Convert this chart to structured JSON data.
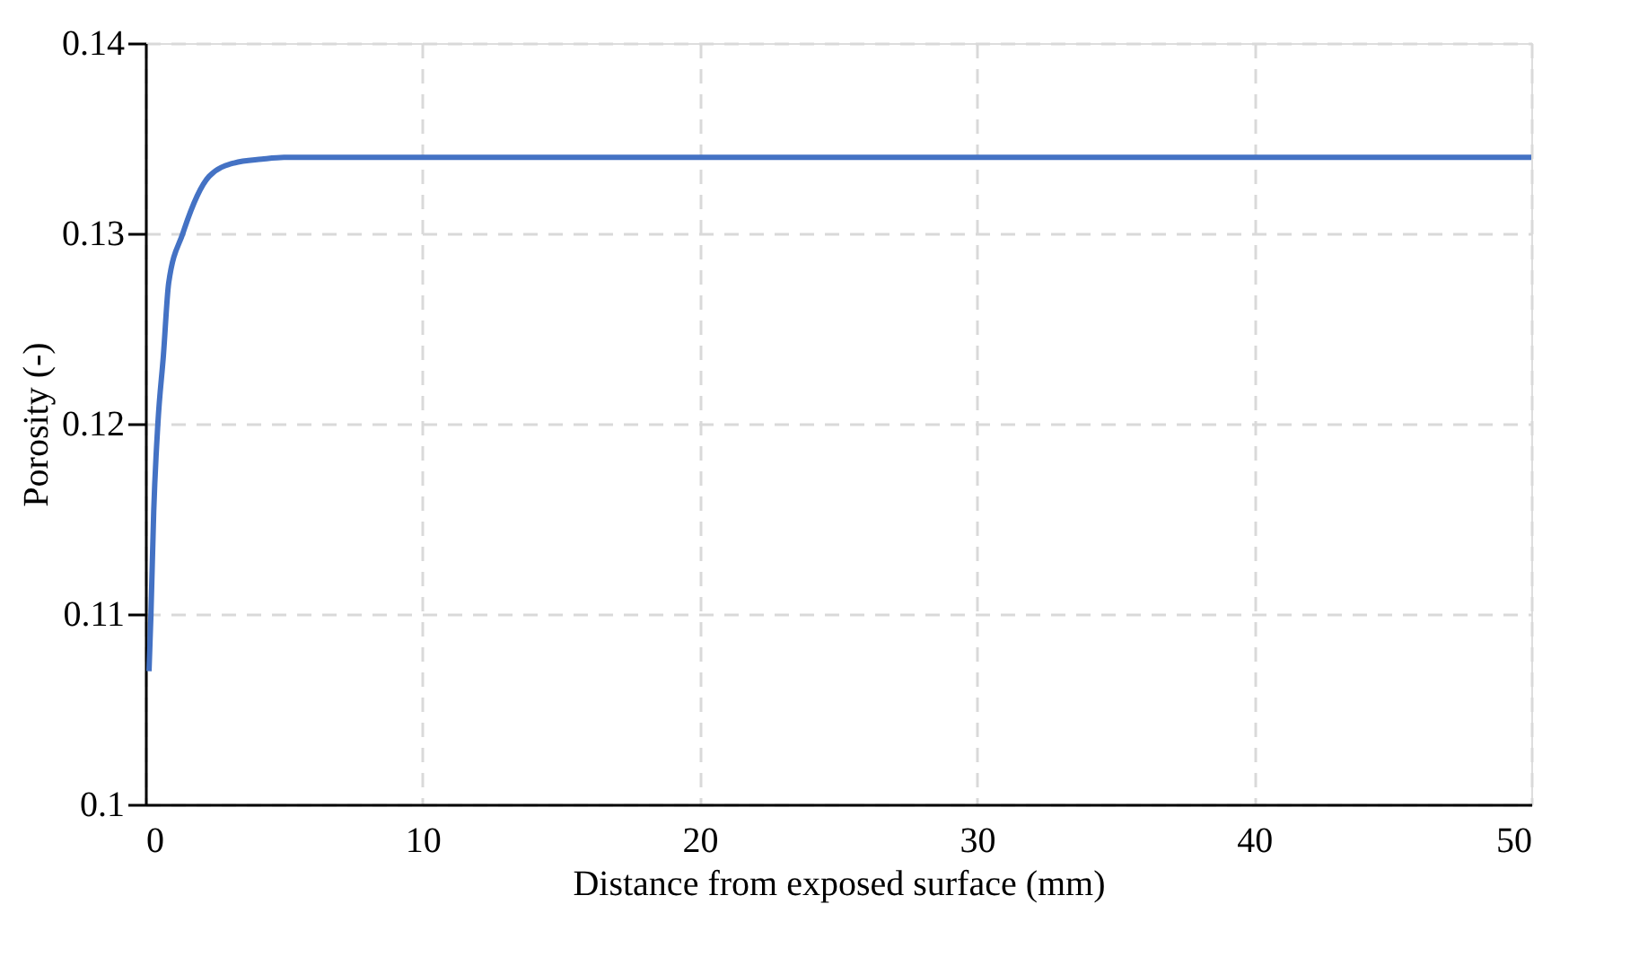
{
  "chart_data": {
    "type": "line",
    "xlabel": "Distance from exposed surface (mm)",
    "ylabel": "Porosity (-)",
    "x": [
      0.13,
      0.2,
      0.3,
      0.45,
      0.65,
      0.84,
      1.35,
      2.3,
      3.2,
      4.2,
      5,
      10,
      20,
      30,
      40,
      50
    ],
    "series": [
      {
        "color": "#4472c4",
        "values": [
          0.107,
          0.11,
          0.1154,
          0.12,
          0.1236,
          0.1274,
          0.13,
          0.133,
          0.1337,
          0.1339,
          0.134,
          0.134,
          0.134,
          0.134,
          0.134,
          0.134
        ]
      }
    ],
    "xlim": [
      0,
      50
    ],
    "xticks": [
      0,
      10,
      20,
      30,
      40,
      50
    ],
    "ylim": [
      0.1,
      0.14
    ],
    "yticks": [
      0.1,
      0.11,
      0.12,
      0.13,
      0.14
    ],
    "grid": true,
    "line_style": "solid",
    "marker": "none"
  }
}
